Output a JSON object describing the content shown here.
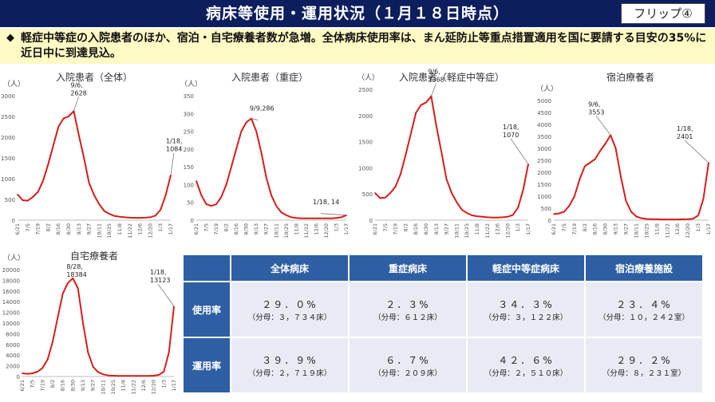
{
  "header": {
    "title": "病床等使用・運用状況（１月１８日時点）",
    "flip_label": "フリップ④"
  },
  "summary": {
    "bullet": "◆",
    "text": "軽症中等症の入院患者のほか、宿泊・自宅療養者数が急増。全体病床使用率は、まん延防止等重点措置適用を国に要請する目安の35%に近日中に到達見込。"
  },
  "unit_label": "（人）",
  "x_tick_labels": [
    "6/21",
    "7/5",
    "7/19",
    "8/2",
    "8/16",
    "8/30",
    "9/13",
    "9/27",
    "10/11",
    "10/25",
    "11/8",
    "11/22",
    "12/6",
    "12/20",
    "1/3",
    "1/17"
  ],
  "chart_data": [
    {
      "type": "line",
      "title": "入院患者（全体）",
      "ylim": [
        0,
        3000
      ],
      "yticks": [
        0,
        500,
        1000,
        1500,
        2000,
        2500,
        3000
      ],
      "x": [
        "6/21",
        "6/28",
        "7/5",
        "7/12",
        "7/19",
        "7/26",
        "8/2",
        "8/9",
        "8/16",
        "8/23",
        "8/30",
        "9/6",
        "9/13",
        "9/20",
        "9/27",
        "10/4",
        "10/11",
        "10/18",
        "10/25",
        "11/1",
        "11/8",
        "11/15",
        "11/22",
        "11/29",
        "12/6",
        "12/13",
        "12/20",
        "12/27",
        "1/3",
        "1/10",
        "1/18"
      ],
      "values": [
        620,
        480,
        470,
        560,
        680,
        950,
        1350,
        1800,
        2250,
        2450,
        2500,
        2628,
        2050,
        1500,
        900,
        600,
        380,
        220,
        150,
        100,
        80,
        70,
        60,
        55,
        55,
        60,
        70,
        110,
        250,
        600,
        1084
      ],
      "annotations": [
        {
          "label": "9/6,",
          "value_label": "2628"
        },
        {
          "label": "1/18,",
          "value_label": "1084"
        }
      ]
    },
    {
      "type": "line",
      "title": "入院患者（重症）",
      "ylim": [
        0,
        350
      ],
      "yticks": [
        0,
        50,
        100,
        150,
        200,
        250,
        300,
        350
      ],
      "x": [
        "6/21",
        "6/28",
        "7/5",
        "7/12",
        "7/19",
        "7/26",
        "8/2",
        "8/9",
        "8/16",
        "8/23",
        "8/30",
        "9/6",
        "9/13",
        "9/20",
        "9/27",
        "10/4",
        "10/11",
        "10/18",
        "10/25",
        "11/1",
        "11/8",
        "11/15",
        "11/22",
        "11/29",
        "12/6",
        "12/13",
        "12/20",
        "12/27",
        "1/3",
        "1/10",
        "1/18"
      ],
      "values": [
        110,
        70,
        45,
        40,
        45,
        65,
        100,
        150,
        200,
        250,
        275,
        286,
        250,
        190,
        120,
        70,
        40,
        22,
        14,
        8,
        6,
        5,
        5,
        5,
        5,
        5,
        5,
        5,
        6,
        8,
        14
      ],
      "annotations": [
        {
          "label": "9/9,286",
          "value_label": ""
        },
        {
          "label": "1/18, 14",
          "value_label": ""
        }
      ]
    },
    {
      "type": "line",
      "title": "入院患者（軽症中等症）",
      "ylim": [
        0,
        2500
      ],
      "yticks": [
        0,
        500,
        1000,
        1500,
        2000,
        2500
      ],
      "x": [
        "6/21",
        "6/28",
        "7/5",
        "7/12",
        "7/19",
        "7/26",
        "8/2",
        "8/9",
        "8/16",
        "8/23",
        "8/30",
        "9/6",
        "9/13",
        "9/20",
        "9/27",
        "10/4",
        "10/11",
        "10/18",
        "10/25",
        "11/1",
        "11/8",
        "11/15",
        "11/22",
        "11/29",
        "12/6",
        "12/13",
        "12/20",
        "12/27",
        "1/3",
        "1/10",
        "1/18"
      ],
      "values": [
        520,
        420,
        430,
        520,
        640,
        880,
        1250,
        1650,
        2050,
        2200,
        2250,
        2368,
        1800,
        1300,
        780,
        520,
        340,
        200,
        135,
        92,
        74,
        65,
        55,
        50,
        50,
        55,
        65,
        100,
        240,
        580,
        1070
      ],
      "annotations": [
        {
          "label": "9/6,",
          "value_label": "2368"
        },
        {
          "label": "1/18,",
          "value_label": "1070"
        }
      ]
    },
    {
      "type": "line",
      "title": "宿泊療養者",
      "ylim": [
        0,
        5000
      ],
      "yticks": [
        0,
        500,
        1000,
        1500,
        2000,
        2500,
        3000,
        3500,
        4000,
        4500,
        5000
      ],
      "x": [
        "6/21",
        "6/28",
        "7/5",
        "7/12",
        "7/19",
        "7/26",
        "8/2",
        "8/9",
        "8/16",
        "8/23",
        "8/30",
        "9/6",
        "9/13",
        "9/20",
        "9/27",
        "10/4",
        "10/11",
        "10/18",
        "10/25",
        "11/1",
        "11/8",
        "11/15",
        "11/22",
        "11/29",
        "12/6",
        "12/13",
        "12/20",
        "12/27",
        "1/3",
        "1/10",
        "1/18"
      ],
      "values": [
        250,
        280,
        350,
        600,
        1000,
        1700,
        2250,
        2400,
        2550,
        2900,
        3200,
        3553,
        3000,
        1800,
        800,
        350,
        150,
        80,
        50,
        40,
        35,
        30,
        30,
        30,
        30,
        35,
        40,
        60,
        200,
        900,
        2401
      ],
      "annotations": [
        {
          "label": "9/6,",
          "value_label": "3553"
        },
        {
          "label": "1/18,",
          "value_label": "2401"
        }
      ]
    },
    {
      "type": "line",
      "title": "自宅療養者",
      "ylim": [
        0,
        20000
      ],
      "yticks": [
        0,
        2000,
        4000,
        6000,
        8000,
        10000,
        12000,
        14000,
        16000,
        18000,
        20000
      ],
      "x": [
        "6/21",
        "6/28",
        "7/5",
        "7/12",
        "7/19",
        "7/26",
        "8/2",
        "8/9",
        "8/16",
        "8/23",
        "8/28",
        "9/6",
        "9/13",
        "9/20",
        "9/27",
        "10/4",
        "10/11",
        "10/18",
        "10/25",
        "11/1",
        "11/8",
        "11/15",
        "11/22",
        "11/29",
        "12/6",
        "12/13",
        "12/20",
        "12/27",
        "1/3",
        "1/10",
        "1/18"
      ],
      "values": [
        600,
        500,
        600,
        900,
        1600,
        3200,
        6500,
        11000,
        15500,
        17500,
        18384,
        16500,
        10000,
        4500,
        1800,
        800,
        400,
        200,
        150,
        120,
        100,
        100,
        100,
        100,
        100,
        120,
        150,
        300,
        900,
        4500,
        13123
      ],
      "annotations": [
        {
          "label": "8/28,",
          "value_label": "18384"
        },
        {
          "label": "1/18,",
          "value_label": "13123"
        }
      ]
    }
  ],
  "table": {
    "columns": [
      "全体病床",
      "重症病床",
      "軽症中等症病床",
      "宿泊療養施設"
    ],
    "rows": [
      {
        "label": "使用率",
        "cells": [
          {
            "value": "２９．０%",
            "denom": "（分母：３，７３４床）"
          },
          {
            "value": "２．３%",
            "denom": "（分母：６１２床）"
          },
          {
            "value": "３４．３%",
            "denom": "（分母：３，１２２床）"
          },
          {
            "value": "２３．４%",
            "denom": "（分母：１０，２４２室）"
          }
        ]
      },
      {
        "label": "運用率",
        "cells": [
          {
            "value": "３９．９%",
            "denom": "（分母：２，７１９床）"
          },
          {
            "value": "６．７%",
            "denom": "（分母：２０９床）"
          },
          {
            "value": "４２．６%",
            "denom": "（分母：２，５１０床）"
          },
          {
            "value": "２９．２%",
            "denom": "（分母：８，２３１室）"
          }
        ]
      }
    ]
  },
  "colors": {
    "header_bg": "#0d1e5e",
    "summary_bg": "#fff9c4",
    "line": "#d61c1c",
    "table_header": "#2e5fa3",
    "table_cell": "#e8ebf4"
  }
}
